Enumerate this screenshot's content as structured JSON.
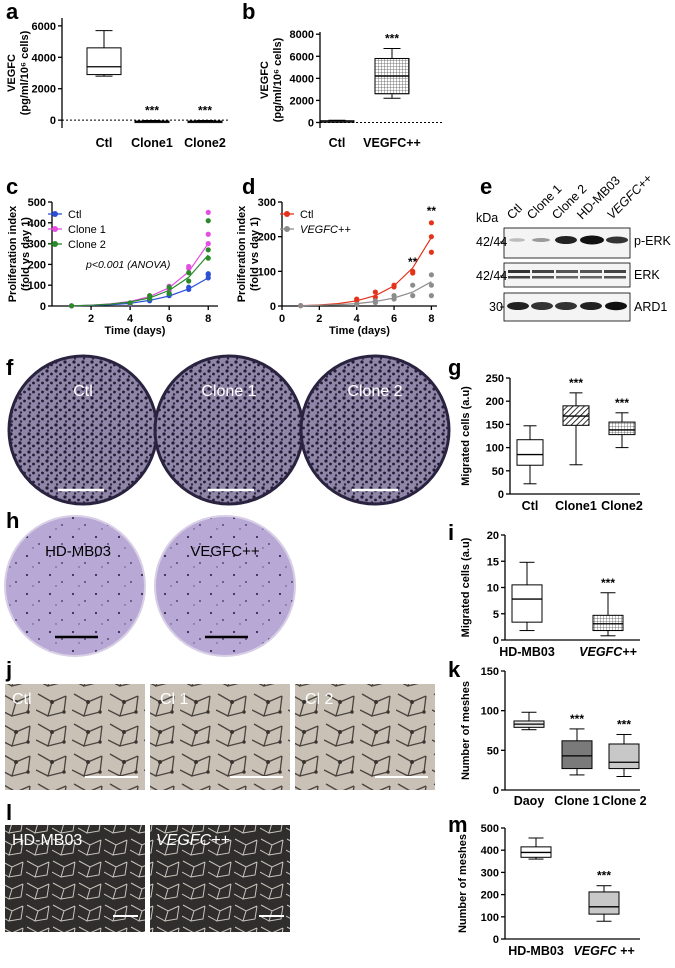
{
  "figure": {
    "panel_letters": [
      "a",
      "b",
      "c",
      "d",
      "e",
      "f",
      "g",
      "h",
      "i",
      "j",
      "k",
      "l",
      "m"
    ],
    "stars3": "***",
    "stars2": "**"
  },
  "panel_c": {
    "annotation": "p<0.001 (ANOVA)"
  },
  "panel_e": {
    "kda_label": "kDa",
    "lanes": [
      "Ctl",
      "Clone 1",
      "Clone 2",
      "HD-MB03",
      "VEGFC++"
    ],
    "rows": [
      {
        "mw": "42/44",
        "name": "p-ERK"
      },
      {
        "mw": "42/44",
        "name": "ERK"
      },
      {
        "mw": "30",
        "name": "ARD1"
      }
    ]
  },
  "panel_f": {
    "labels": [
      "Ctl",
      "Clone 1",
      "Clone 2"
    ]
  },
  "panel_h": {
    "labels": [
      "HD-MB03",
      "VEGFC++"
    ]
  },
  "panel_j": {
    "labels": [
      "Ctl",
      "Cl 1",
      "Cl 2"
    ]
  },
  "panel_l": {
    "labels": [
      "HD-MB03",
      "VEGFC++"
    ]
  },
  "chart_data": [
    {
      "id": "a",
      "type": "box",
      "ylabel": "VEGFC (pg/ml/10⁶ cells)",
      "ylabel_line1": "VEGFC",
      "ylabel_line2": "(pg/ml/10⁶ cells)",
      "categories": [
        "Ctl",
        "Clone1",
        "Clone2"
      ],
      "yticks": [
        0,
        2000,
        4000,
        6000
      ],
      "ylim": [
        -500,
        6500
      ],
      "reference_line": 0,
      "boxes": [
        {
          "min": 2800,
          "q1": 2900,
          "median": 3400,
          "q3": 4600,
          "max": 5700
        },
        {
          "min": -150,
          "q1": -100,
          "median": -80,
          "q3": -60,
          "max": -20
        },
        {
          "min": -150,
          "q1": -100,
          "median": -80,
          "q3": -60,
          "max": -20
        }
      ],
      "significance": [
        "",
        "***",
        "***"
      ]
    },
    {
      "id": "b",
      "type": "box",
      "ylabel_line1": "VEGFC",
      "ylabel_line2": "(pg/ml/10⁶ cells)",
      "categories": [
        "Ctl",
        "VEGFC++"
      ],
      "yticks": [
        0,
        2000,
        4000,
        6000,
        8000
      ],
      "ylim": [
        -500,
        8200
      ],
      "reference_line": 0,
      "boxes": [
        {
          "min": 30,
          "q1": 80,
          "median": 120,
          "q3": 160,
          "max": 200
        },
        {
          "min": 2200,
          "q1": 2600,
          "median": 4200,
          "q3": 5800,
          "max": 6700
        }
      ],
      "significance": [
        "",
        "***"
      ]
    },
    {
      "id": "c",
      "type": "scatter",
      "xlabel": "Time (days)",
      "ylabel_line1": "Proliferation index",
      "ylabel_line2": "(fold vs day 1)",
      "xticks": [
        2,
        4,
        6,
        8
      ],
      "xlim": [
        0,
        8.5
      ],
      "yticks": [
        0,
        100,
        200,
        300,
        400,
        500
      ],
      "ylim": [
        0,
        500
      ],
      "legend_position": "top-left",
      "series": [
        {
          "name": "Ctl",
          "color": "#2b50d6",
          "points": [
            [
              1,
              1
            ],
            [
              4,
              10
            ],
            [
              4,
              12
            ],
            [
              5,
              25
            ],
            [
              5,
              32
            ],
            [
              6,
              50
            ],
            [
              6,
              58
            ],
            [
              7,
              80
            ],
            [
              7,
              90
            ],
            [
              8,
              135
            ],
            [
              8,
              150
            ],
            [
              8,
              155
            ]
          ],
          "fit": [
            [
              1,
              1
            ],
            [
              2,
              3
            ],
            [
              3,
              6
            ],
            [
              4,
              13
            ],
            [
              5,
              27
            ],
            [
              6,
              48
            ],
            [
              7,
              82
            ],
            [
              8,
              135
            ]
          ]
        },
        {
          "name": "Clone 1",
          "color": "#e34fe0",
          "points": [
            [
              1,
              1
            ],
            [
              4,
              12
            ],
            [
              5,
              40
            ],
            [
              5,
              45
            ],
            [
              6,
              75
            ],
            [
              6,
              95
            ],
            [
              7,
              180
            ],
            [
              7,
              190
            ],
            [
              8,
              300
            ],
            [
              8,
              345
            ],
            [
              8,
              450
            ]
          ],
          "fit": [
            [
              1,
              1
            ],
            [
              2,
              4
            ],
            [
              3,
              10
            ],
            [
              4,
              22
            ],
            [
              5,
              45
            ],
            [
              6,
              88
            ],
            [
              7,
              165
            ],
            [
              8,
              300
            ]
          ]
        },
        {
          "name": "Clone 2",
          "color": "#2a8a2a",
          "points": [
            [
              1,
              1
            ],
            [
              4,
              15
            ],
            [
              5,
              35
            ],
            [
              5,
              50
            ],
            [
              6,
              60
            ],
            [
              6,
              90
            ],
            [
              7,
              120
            ],
            [
              7,
              160
            ],
            [
              8,
              230
            ],
            [
              8,
              270
            ],
            [
              8,
              410
            ]
          ],
          "fit": [
            [
              1,
              1
            ],
            [
              2,
              4
            ],
            [
              3,
              9
            ],
            [
              4,
              19
            ],
            [
              5,
              39
            ],
            [
              6,
              75
            ],
            [
              7,
              138
            ],
            [
              8,
              245
            ]
          ]
        }
      ]
    },
    {
      "id": "d",
      "type": "scatter",
      "xlabel": "Time (days)",
      "ylabel_line1": "Proliferation index",
      "ylabel_line2": "(fold vs day 1)",
      "xticks": [
        0,
        2,
        4,
        6,
        8
      ],
      "xlim": [
        0,
        8.3
      ],
      "yticks": [
        0,
        100,
        200,
        300
      ],
      "ylim": [
        0,
        300
      ],
      "legend_position": "top-left",
      "series": [
        {
          "name": "Ctl",
          "color": "#e5321a",
          "points": [
            [
              1,
              1
            ],
            [
              4,
              15
            ],
            [
              4,
              20
            ],
            [
              5,
              25
            ],
            [
              5,
              40
            ],
            [
              6,
              55
            ],
            [
              6,
              60
            ],
            [
              7,
              95
            ],
            [
              7,
              100
            ],
            [
              8,
              155
            ],
            [
              8,
              200
            ],
            [
              8,
              240
            ]
          ],
          "fit": [
            [
              1,
              1
            ],
            [
              2,
              3
            ],
            [
              3,
              7
            ],
            [
              4,
              15
            ],
            [
              5,
              30
            ],
            [
              6,
              58
            ],
            [
              7,
              110
            ],
            [
              8,
              198
            ]
          ]
        },
        {
          "name": "VEGFC++",
          "color": "#8c8c8c",
          "points": [
            [
              1,
              1
            ],
            [
              4,
              5
            ],
            [
              5,
              10
            ],
            [
              5,
              15
            ],
            [
              6,
              20
            ],
            [
              6,
              30
            ],
            [
              7,
              30
            ],
            [
              7,
              60
            ],
            [
              8,
              30
            ],
            [
              8,
              60
            ],
            [
              8,
              90
            ]
          ],
          "fit": [
            [
              1,
              1
            ],
            [
              2,
              2
            ],
            [
              3,
              4
            ],
            [
              4,
              7
            ],
            [
              5,
              13
            ],
            [
              6,
              23
            ],
            [
              7,
              40
            ],
            [
              8,
              70
            ]
          ]
        }
      ],
      "significance_x": [
        7,
        8
      ],
      "significance": [
        "**",
        "**"
      ]
    },
    {
      "id": "g",
      "type": "box",
      "ylabel": "Migrated cells (a.u)",
      "categories": [
        "Ctl",
        "Clone1",
        "Clone2"
      ],
      "yticks": [
        0,
        50,
        100,
        150,
        200,
        250
      ],
      "ylim": [
        0,
        250
      ],
      "fills": [
        "white",
        "hatch",
        "grid"
      ],
      "boxes": [
        {
          "min": 22,
          "q1": 62,
          "median": 85,
          "q3": 117,
          "max": 147
        },
        {
          "min": 63,
          "q1": 148,
          "median": 168,
          "q3": 190,
          "max": 218
        },
        {
          "min": 100,
          "q1": 128,
          "median": 138,
          "q3": 155,
          "max": 175
        }
      ],
      "significance": [
        "",
        "***",
        "***"
      ]
    },
    {
      "id": "i",
      "type": "box",
      "ylabel": "Migrated cells (a.u)",
      "categories": [
        "HD-MB03",
        "VEGFC++"
      ],
      "yticks": [
        0,
        5,
        10,
        15,
        20
      ],
      "ylim": [
        0,
        20
      ],
      "fills": [
        "white",
        "grid"
      ],
      "boxes": [
        {
          "min": 1.8,
          "q1": 3.4,
          "median": 7.8,
          "q3": 10.5,
          "max": 14.8
        },
        {
          "min": 0.8,
          "q1": 1.8,
          "median": 3.1,
          "q3": 4.7,
          "max": 9.0
        }
      ],
      "significance": [
        "",
        "***"
      ]
    },
    {
      "id": "k",
      "type": "box",
      "ylabel": "Number of meshes",
      "categories": [
        "Daoy",
        "Clone 1",
        "Clone 2"
      ],
      "yticks": [
        0,
        50,
        100,
        150
      ],
      "ylim": [
        0,
        150
      ],
      "fills": [
        "#e8e8e8",
        "#7a7a7a",
        "#c8c8c8"
      ],
      "boxes": [
        {
          "min": 76,
          "q1": 79,
          "median": 83,
          "q3": 87,
          "max": 98
        },
        {
          "min": 19,
          "q1": 27,
          "median": 43,
          "q3": 62,
          "max": 77
        },
        {
          "min": 17,
          "q1": 27,
          "median": 35,
          "q3": 58,
          "max": 70
        }
      ],
      "significance": [
        "",
        "***",
        "***"
      ]
    },
    {
      "id": "m",
      "type": "box",
      "ylabel": "Number of meshes",
      "categories": [
        "HD-MB03",
        "VEGFC ++"
      ],
      "yticks": [
        0,
        100,
        200,
        300,
        400,
        500
      ],
      "ylim": [
        0,
        500
      ],
      "fills": [
        "white",
        "#c8c8c8"
      ],
      "boxes": [
        {
          "min": 360,
          "q1": 368,
          "median": 390,
          "q3": 415,
          "max": 455
        },
        {
          "min": 80,
          "q1": 112,
          "median": 145,
          "q3": 212,
          "max": 240
        }
      ],
      "significance": [
        "",
        "***"
      ]
    }
  ]
}
